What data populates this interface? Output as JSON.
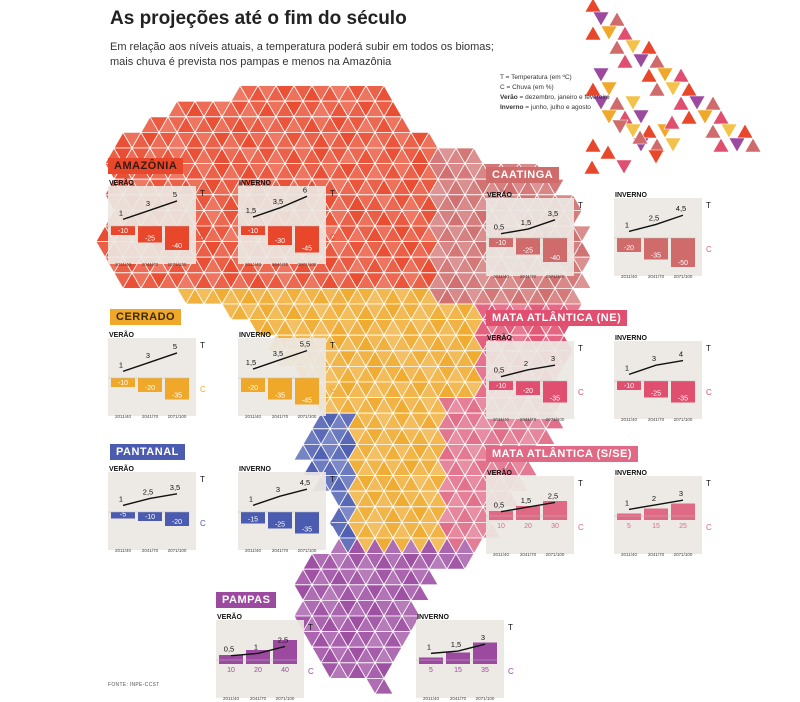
{
  "title": "As projeções até o fim do século",
  "subtitle_lines": [
    "Em relação aos níveis atuais, a temperatura poderá subir em todos os biomas;",
    "mais chuva é prevista nos pampas e menos na Amazônia"
  ],
  "legend": {
    "t": "T = Temperatura (em ºC)",
    "c": "C = Chuva (em %)",
    "verao_key": "Verão",
    "verao_val": " = dezembro, janeiro e fevereiro",
    "inverno_key": "Inverno",
    "inverno_val": " = junho, julho e agosto"
  },
  "source": "FONTE: INPE-CCST",
  "colors": {
    "amazonia": "#e8472b",
    "caatinga": "#cf6b6b",
    "cerrado": "#f0a82a",
    "mata_ne": "#e04f70",
    "mata_sse": "#e06a86",
    "pantanal": "#4a5bb0",
    "pampas": "#9b4aa0",
    "temp_line": "#111111",
    "panel_bg": "#ebe7e2"
  },
  "chart_data": [
    {
      "type": "bar",
      "biome": "AMAZÔNIA",
      "season": "VERÃO",
      "season_label": "VERÃO",
      "categories": [
        "2011/40",
        "2041/70",
        "2071/100"
      ],
      "temperature": [
        1,
        3,
        5
      ],
      "temperature_labels": [
        "1",
        "3",
        "5"
      ],
      "rain": [
        -10,
        -25,
        -40
      ],
      "rain_labels": [
        "-10",
        "-25",
        "-40"
      ],
      "t_label": "T",
      "c_label": "C"
    },
    {
      "type": "bar",
      "biome": "AMAZÔNIA",
      "season": "INVERNO",
      "season_label": "INVERNO",
      "categories": [
        "2011/40",
        "2041/70",
        "2071/100"
      ],
      "temperature": [
        1.5,
        3.5,
        6
      ],
      "temperature_labels": [
        "1,5",
        "3,5",
        "6"
      ],
      "rain": [
        -10,
        -30,
        -45
      ],
      "rain_labels": [
        "-10",
        "-30",
        "-45"
      ],
      "t_label": "T",
      "c_label": "C"
    },
    {
      "type": "bar",
      "biome": "CAATINGA",
      "season": "VERÃO",
      "season_label": "VERÃO",
      "categories": [
        "2011/40",
        "2041/70",
        "2071/100"
      ],
      "temperature": [
        0.5,
        1.5,
        3.5
      ],
      "temperature_labels": [
        "0,5",
        "1,5",
        "3,5"
      ],
      "rain": [
        -10,
        -25,
        -40
      ],
      "rain_labels": [
        "-10",
        "-25",
        "-40"
      ],
      "t_label": "T",
      "c_label": "C"
    },
    {
      "type": "bar",
      "biome": "CAATINGA",
      "season": "INVERNO",
      "season_label": "INVERNO",
      "categories": [
        "2011/40",
        "2041/70",
        "2071/100"
      ],
      "temperature": [
        1,
        2.5,
        4.5
      ],
      "temperature_labels": [
        "1",
        "2,5",
        "4,5"
      ],
      "rain": [
        -20,
        -35,
        -50
      ],
      "rain_labels": [
        "-20",
        "-35",
        "-50"
      ],
      "t_label": "T",
      "c_label": "C"
    },
    {
      "type": "bar",
      "biome": "CERRADO",
      "season": "VERÃO",
      "season_label": "VERÃO",
      "categories": [
        "2011/40",
        "2041/70",
        "2071/100"
      ],
      "temperature": [
        1,
        3,
        5
      ],
      "temperature_labels": [
        "1",
        "3",
        "5"
      ],
      "rain": [
        -10,
        -20,
        -35
      ],
      "rain_labels": [
        "-10",
        "-20",
        "-35"
      ],
      "t_label": "T",
      "c_label": "C"
    },
    {
      "type": "bar",
      "biome": "CERRADO",
      "season": "INVERNO",
      "season_label": "INVERNO",
      "categories": [
        "2011/40",
        "2041/70",
        "2071/100"
      ],
      "temperature": [
        1.5,
        3.5,
        5.5
      ],
      "temperature_labels": [
        "1,5",
        "3,5",
        "5,5"
      ],
      "rain": [
        -20,
        -35,
        -45
      ],
      "rain_labels": [
        "-20",
        "-35",
        "-45"
      ],
      "t_label": "T",
      "c_label": "C"
    },
    {
      "type": "bar",
      "biome": "MATA ATLÂNTICA (NE)",
      "season": "VERÃO",
      "season_label": "VERÃO",
      "categories": [
        "2011/40",
        "2041/70",
        "2071/100"
      ],
      "temperature": [
        0.5,
        2,
        3
      ],
      "temperature_labels": [
        "0,5",
        "2",
        "3"
      ],
      "rain": [
        -10,
        -20,
        -35
      ],
      "rain_labels": [
        "-10",
        "-20",
        "-35"
      ],
      "t_label": "T",
      "c_label": "C"
    },
    {
      "type": "bar",
      "biome": "MATA ATLÂNTICA (NE)",
      "season": "INVERNO",
      "season_label": "INVERNO",
      "categories": [
        "2011/40",
        "2041/70",
        "2071/100"
      ],
      "temperature": [
        1,
        3,
        4
      ],
      "temperature_labels": [
        "1",
        "3",
        "4"
      ],
      "rain": [
        -10,
        -25,
        -35
      ],
      "rain_labels": [
        "-10",
        "-25",
        "-35"
      ],
      "t_label": "T",
      "c_label": "C"
    },
    {
      "type": "bar",
      "biome": "PANTANAL",
      "season": "VERÃO",
      "season_label": "VERÃO",
      "categories": [
        "2011/40",
        "2041/70",
        "2071/100"
      ],
      "temperature": [
        1,
        2.5,
        3.5
      ],
      "temperature_labels": [
        "1",
        "2,5",
        "3,5"
      ],
      "rain": [
        -5,
        -10,
        -20
      ],
      "rain_labels": [
        "-5",
        "-10",
        "-20"
      ],
      "t_label": "T",
      "c_label": "C"
    },
    {
      "type": "bar",
      "biome": "PANTANAL",
      "season": "INVERNO",
      "season_label": "INVERNO",
      "categories": [
        "2011/40",
        "2041/70",
        "2071/100"
      ],
      "temperature": [
        1,
        3,
        4.5
      ],
      "temperature_labels": [
        "1",
        "3",
        "4,5"
      ],
      "rain": [
        -15,
        -25,
        -35
      ],
      "rain_labels": [
        "-15",
        "-25",
        "-35"
      ],
      "t_label": "T",
      "c_label": "C"
    },
    {
      "type": "bar",
      "biome": "MATA ATLÂNTICA (S/SE)",
      "season": "VERÃO",
      "season_label": "VERÃO",
      "categories": [
        "2011/40",
        "2041/70",
        "2071/100"
      ],
      "temperature": [
        0.5,
        1.5,
        2.5
      ],
      "temperature_labels": [
        "0,5",
        "1,5",
        "2,5"
      ],
      "rain": [
        10,
        20,
        30
      ],
      "rain_labels": [
        "10",
        "20",
        "30"
      ],
      "t_label": "T",
      "c_label": "C"
    },
    {
      "type": "bar",
      "biome": "MATA ATLÂNTICA (S/SE)",
      "season": "INVERNO",
      "season_label": "INVERNO",
      "categories": [
        "2011/40",
        "2041/70",
        "2071/100"
      ],
      "temperature": [
        1,
        2,
        3
      ],
      "temperature_labels": [
        "1",
        "2",
        "3"
      ],
      "rain": [
        5,
        15,
        25
      ],
      "rain_labels": [
        "5",
        "15",
        "25"
      ],
      "t_label": "T",
      "c_label": "C"
    },
    {
      "type": "bar",
      "biome": "PAMPAS",
      "season": "VERÃO",
      "season_label": "VERÃO",
      "categories": [
        "2011/40",
        "2041/70",
        "2071/100"
      ],
      "temperature": [
        0.5,
        1,
        2.5
      ],
      "temperature_labels": [
        "0,5",
        "1",
        "2,5"
      ],
      "rain": [
        10,
        20,
        40
      ],
      "rain_labels": [
        "10",
        "20",
        "40"
      ],
      "t_label": "T",
      "c_label": "C"
    },
    {
      "type": "bar",
      "biome": "PAMPAS",
      "season": "INVERNO",
      "season_label": "INVERNO",
      "categories": [
        "2011/40",
        "2041/70",
        "2071/100"
      ],
      "temperature": [
        1,
        1.5,
        3
      ],
      "temperature_labels": [
        "1",
        "1,5",
        "3"
      ],
      "rain": [
        5,
        15,
        35
      ],
      "rain_labels": [
        "5",
        "15",
        "35"
      ],
      "t_label": "T",
      "c_label": "C"
    }
  ]
}
